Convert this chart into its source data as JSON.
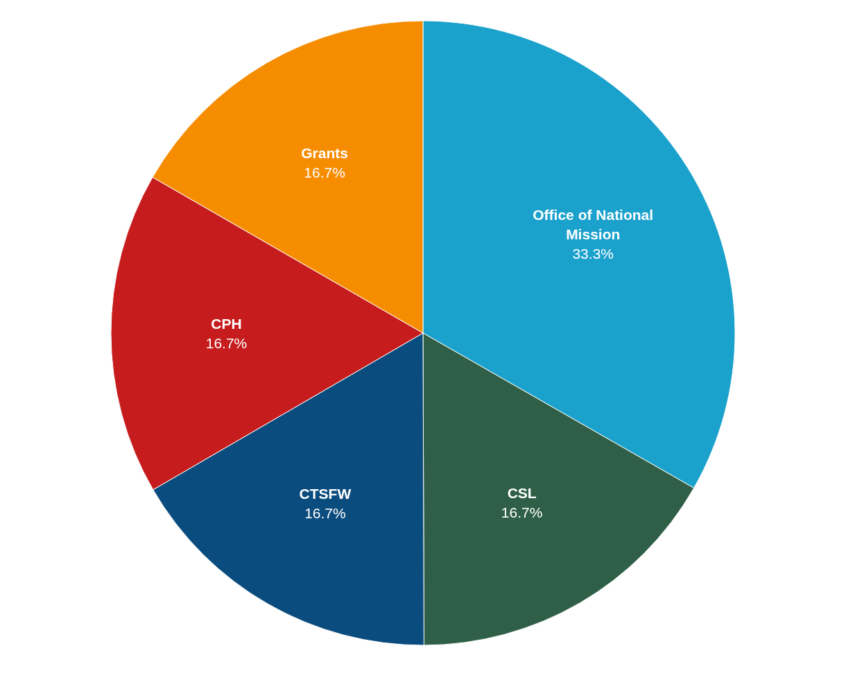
{
  "chart_data": {
    "type": "pie",
    "categories": [
      "Office of National Mission",
      "CSL",
      "CTSFW",
      "CPH",
      "Grants"
    ],
    "values": [
      33.3,
      16.7,
      16.7,
      16.7,
      16.7
    ],
    "colors": [
      "#1aa1cc",
      "#2f6047",
      "#0b4c7e",
      "#c61c1e",
      "#f68c00"
    ],
    "value_labels": [
      "33.3%",
      "16.7%",
      "16.7%",
      "16.7%",
      "16.7%"
    ]
  }
}
